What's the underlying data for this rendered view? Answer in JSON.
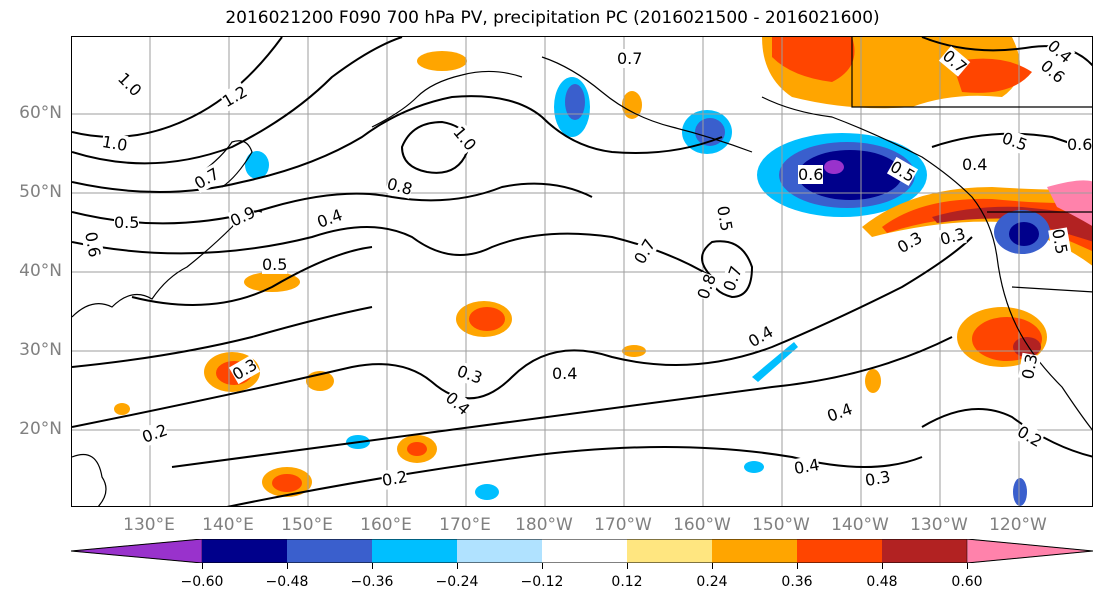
{
  "title": "2016021200 F090 700 hPa PV, precipitation PC (2016021500 - 2016021600)",
  "latitude_labels": [
    "60°N",
    "50°N",
    "40°N",
    "30°N",
    "20°N"
  ],
  "longitude_labels": [
    "130°E",
    "140°E",
    "150°E",
    "160°E",
    "170°E",
    "180°W",
    "170°W",
    "160°W",
    "150°W",
    "140°W",
    "130°W",
    "120°W"
  ],
  "colorbar": {
    "tick_labels": [
      "−0.60",
      "−0.48",
      "−0.36",
      "−0.24",
      "−0.12",
      "0.12",
      "0.24",
      "0.36",
      "0.48",
      "0.60"
    ],
    "colors": [
      "#9932cc",
      "#00008b",
      "#3a5fcd",
      "#00bfff",
      "#b0e2ff",
      "#ffffff",
      "#ffe680",
      "#ffa500",
      "#ff4500",
      "#b22222",
      "#ff82ab"
    ]
  },
  "contour_labels": [
    "1.0",
    "1.2",
    "1.0",
    "0.7",
    "0.5",
    "0.9",
    "0.6",
    "0.4",
    "0.8",
    "1.0",
    "0.7",
    "0.5",
    "0.7",
    "0.8",
    "0.7",
    "0.5",
    "0.6",
    "0.5",
    "0.4",
    "0.3",
    "0.4",
    "0.3",
    "0.4",
    "0.2",
    "0.2",
    "0.3",
    "0.4",
    "0.4",
    "0.4",
    "0.3",
    "0.2",
    "0.3",
    "0.5",
    "0.6",
    "0.7",
    "0.6",
    "0.4",
    "0.5",
    "0.3",
    "0.5",
    "0.7",
    "0.8",
    "0.3"
  ]
}
